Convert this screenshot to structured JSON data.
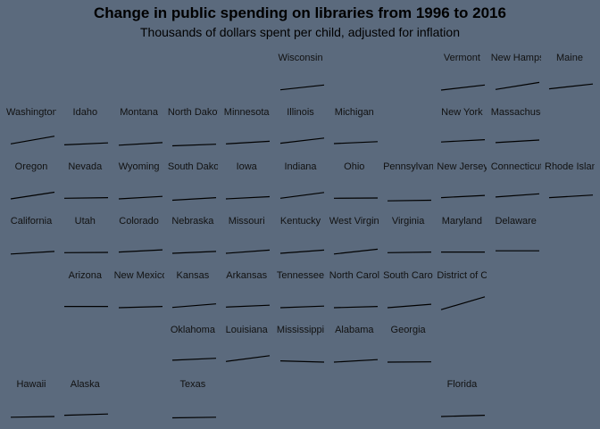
{
  "title": "Change in public spending on libraries from 1996 to 2016",
  "subtitle": "Thousands of dollars spent per child, adjusted for inflation",
  "chart_data": {
    "type": "line",
    "x": [
      1996,
      2016
    ],
    "ylim": [
      0,
      100
    ],
    "states": [
      {
        "name": "Wisconsin",
        "row": 0,
        "col": 5,
        "values": [
          37,
          52
        ]
      },
      {
        "name": "Vermont",
        "row": 0,
        "col": 8,
        "values": [
          36,
          52
        ]
      },
      {
        "name": "New Hampshire",
        "row": 0,
        "col": 9,
        "values": [
          38,
          60
        ]
      },
      {
        "name": "Maine",
        "row": 0,
        "col": 10,
        "values": [
          40,
          55
        ]
      },
      {
        "name": "Washington",
        "row": 1,
        "col": 0,
        "values": [
          38,
          62
        ]
      },
      {
        "name": "Idaho",
        "row": 1,
        "col": 1,
        "values": [
          35,
          41
        ]
      },
      {
        "name": "Montana",
        "row": 1,
        "col": 2,
        "values": [
          34,
          42
        ]
      },
      {
        "name": "North Dakota",
        "row": 1,
        "col": 3,
        "values": [
          32,
          37
        ]
      },
      {
        "name": "Minnesota",
        "row": 1,
        "col": 4,
        "values": [
          38,
          46
        ]
      },
      {
        "name": "Illinois",
        "row": 1,
        "col": 5,
        "values": [
          40,
          56
        ]
      },
      {
        "name": "Michigan",
        "row": 1,
        "col": 6,
        "values": [
          39,
          45
        ]
      },
      {
        "name": "New York",
        "row": 1,
        "col": 8,
        "values": [
          44,
          51
        ]
      },
      {
        "name": "Massachusetts",
        "row": 1,
        "col": 9,
        "values": [
          42,
          50
        ]
      },
      {
        "name": "Oregon",
        "row": 2,
        "col": 0,
        "values": [
          36,
          57
        ]
      },
      {
        "name": "Nevada",
        "row": 2,
        "col": 1,
        "values": [
          38,
          40
        ]
      },
      {
        "name": "Wyoming",
        "row": 2,
        "col": 2,
        "values": [
          36,
          44
        ]
      },
      {
        "name": "South Dakota",
        "row": 2,
        "col": 3,
        "values": [
          32,
          40
        ]
      },
      {
        "name": "Iowa",
        "row": 2,
        "col": 4,
        "values": [
          36,
          43
        ]
      },
      {
        "name": "Indiana",
        "row": 2,
        "col": 5,
        "values": [
          38,
          56
        ]
      },
      {
        "name": "Ohio",
        "row": 2,
        "col": 6,
        "values": [
          38,
          39
        ]
      },
      {
        "name": "Pennsylvania",
        "row": 2,
        "col": 7,
        "values": [
          30,
          32
        ]
      },
      {
        "name": "New Jersey",
        "row": 2,
        "col": 8,
        "values": [
          40,
          47
        ]
      },
      {
        "name": "Connecticut",
        "row": 2,
        "col": 9,
        "values": [
          42,
          52
        ]
      },
      {
        "name": "Rhode Island",
        "row": 2,
        "col": 10,
        "values": [
          40,
          48
        ]
      },
      {
        "name": "California",
        "row": 3,
        "col": 0,
        "values": [
          34,
          42
        ]
      },
      {
        "name": "Utah",
        "row": 3,
        "col": 1,
        "values": [
          38,
          39
        ]
      },
      {
        "name": "Colorado",
        "row": 3,
        "col": 2,
        "values": [
          40,
          47
        ]
      },
      {
        "name": "Nebraska",
        "row": 3,
        "col": 3,
        "values": [
          36,
          42
        ]
      },
      {
        "name": "Missouri",
        "row": 3,
        "col": 4,
        "values": [
          36,
          46
        ]
      },
      {
        "name": "Kentucky",
        "row": 3,
        "col": 5,
        "values": [
          36,
          46
        ]
      },
      {
        "name": "West Virginia",
        "row": 3,
        "col": 6,
        "values": [
          34,
          49
        ]
      },
      {
        "name": "Virginia",
        "row": 3,
        "col": 7,
        "values": [
          38,
          40
        ]
      },
      {
        "name": "Maryland",
        "row": 3,
        "col": 8,
        "values": [
          40,
          40
        ]
      },
      {
        "name": "Delaware",
        "row": 3,
        "col": 9,
        "values": [
          44,
          44
        ]
      },
      {
        "name": "Arizona",
        "row": 4,
        "col": 1,
        "values": [
          40,
          40
        ]
      },
      {
        "name": "New Mexico",
        "row": 4,
        "col": 2,
        "values": [
          36,
          40
        ]
      },
      {
        "name": "Kansas",
        "row": 4,
        "col": 3,
        "values": [
          37,
          48
        ]
      },
      {
        "name": "Arkansas",
        "row": 4,
        "col": 4,
        "values": [
          38,
          44
        ]
      },
      {
        "name": "Tennessee",
        "row": 4,
        "col": 5,
        "values": [
          36,
          41
        ]
      },
      {
        "name": "North Carolina",
        "row": 4,
        "col": 6,
        "values": [
          36,
          40
        ]
      },
      {
        "name": "South Carolina",
        "row": 4,
        "col": 7,
        "values": [
          36,
          47
        ]
      },
      {
        "name": "District of Columbia",
        "row": 4,
        "col": 8,
        "values": [
          30,
          70
        ]
      },
      {
        "name": "Oklahoma",
        "row": 5,
        "col": 3,
        "values": [
          42,
          48
        ]
      },
      {
        "name": "Louisiana",
        "row": 5,
        "col": 4,
        "values": [
          38,
          56
        ]
      },
      {
        "name": "Mississippi",
        "row": 5,
        "col": 5,
        "values": [
          40,
          36
        ]
      },
      {
        "name": "Alabama",
        "row": 5,
        "col": 6,
        "values": [
          36,
          44
        ]
      },
      {
        "name": "Georgia",
        "row": 5,
        "col": 7,
        "values": [
          36,
          37
        ]
      },
      {
        "name": "Hawaii",
        "row": 6,
        "col": 0,
        "values": [
          34,
          36
        ]
      },
      {
        "name": "Alaska",
        "row": 6,
        "col": 1,
        "values": [
          40,
          44
        ]
      },
      {
        "name": "Texas",
        "row": 6,
        "col": 3,
        "values": [
          32,
          34
        ]
      },
      {
        "name": "Florida",
        "row": 6,
        "col": 8,
        "values": [
          36,
          40
        ]
      }
    ]
  }
}
